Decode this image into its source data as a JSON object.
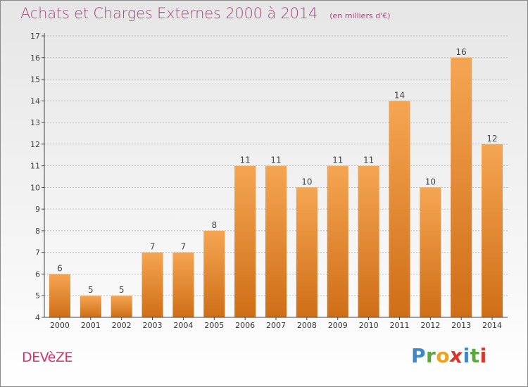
{
  "header": {
    "title": "Achats et Charges Externes 2000 à 2014",
    "subtitle": "(en milliers d'€)"
  },
  "footer": {
    "commune": "DEVèZE",
    "logo_text": "Proxiti"
  },
  "colors": {
    "title": "#a24a7a",
    "commune": "#d6336c",
    "bar_light": "#f5a552",
    "bar_dark": "#cf6e17",
    "grid": "#bfbfbf"
  },
  "chart_data": {
    "type": "bar",
    "title": "Achats et Charges Externes 2000 à 2014",
    "subtitle": "(en milliers d'€)",
    "categories": [
      "2000",
      "2001",
      "2002",
      "2003",
      "2004",
      "2005",
      "2006",
      "2007",
      "2008",
      "2009",
      "2010",
      "2011",
      "2012",
      "2013",
      "2014"
    ],
    "values": [
      6,
      5,
      5,
      7,
      7,
      8,
      11,
      11,
      10,
      11,
      11,
      14,
      10,
      16,
      12
    ],
    "ylim": [
      4,
      17
    ],
    "yticks": [
      4,
      5,
      6,
      7,
      8,
      9,
      10,
      11,
      12,
      13,
      14,
      15,
      16,
      17
    ],
    "grid": "horizontal dashed",
    "data_labels": true,
    "xlabel": "",
    "ylabel": ""
  }
}
